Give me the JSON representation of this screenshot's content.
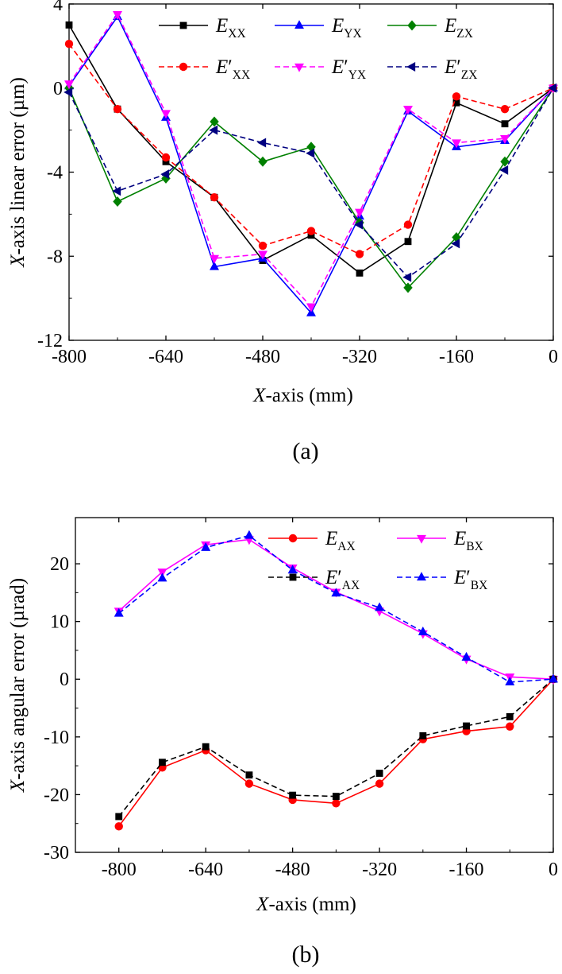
{
  "figure": {
    "panels": [
      {
        "caption": "(a)"
      },
      {
        "caption": "(b)"
      }
    ]
  },
  "chart_data": [
    {
      "type": "line",
      "panel": "(a)",
      "xlabel": {
        "italic": "X",
        "rest": "-axis (mm)"
      },
      "ylabel": {
        "italic": "X",
        "rest": "-axis linear error (µm)"
      },
      "xlim": [
        -800,
        0
      ],
      "ylim": [
        -12,
        4
      ],
      "xticks": [
        -800,
        -640,
        -480,
        -320,
        -160,
        0
      ],
      "yticks": [
        -12,
        -8,
        -4,
        0,
        4
      ],
      "grid": false,
      "legend": "top, 3 columns x 2 rows",
      "x": [
        -800,
        -720,
        -640,
        -560,
        -480,
        -400,
        -320,
        -240,
        -160,
        -80,
        0
      ],
      "series": [
        {
          "name": "E_XX",
          "label_main": "E",
          "label_prime": "",
          "label_sub": "XX",
          "color": "#000000",
          "dash": "solid",
          "marker": "square",
          "values": [
            3.0,
            -1.0,
            -3.5,
            -5.2,
            -8.2,
            -7.0,
            -8.8,
            -7.3,
            -0.7,
            -1.7,
            0
          ]
        },
        {
          "name": "E_YX",
          "label_main": "E",
          "label_prime": "",
          "label_sub": "YX",
          "color": "#0000ff",
          "dash": "solid",
          "marker": "triangle-up",
          "values": [
            0.1,
            3.4,
            -1.4,
            -8.5,
            -8.1,
            -10.7,
            -6.1,
            -1.1,
            -2.8,
            -2.5,
            0
          ]
        },
        {
          "name": "E_ZX",
          "label_main": "E",
          "label_prime": "",
          "label_sub": "ZX",
          "color": "#008000",
          "dash": "solid",
          "marker": "diamond",
          "values": [
            0.0,
            -5.4,
            -4.3,
            -1.6,
            -3.5,
            -2.8,
            -6.4,
            -9.5,
            -7.1,
            -3.5,
            0
          ]
        },
        {
          "name": "E'_XX",
          "label_main": "E",
          "label_prime": "′",
          "label_sub": "XX",
          "color": "#ff0000",
          "dash": "dashed",
          "marker": "circle",
          "values": [
            2.1,
            -1.0,
            -3.3,
            -5.2,
            -7.5,
            -6.8,
            -7.9,
            -6.5,
            -0.4,
            -1.0,
            0
          ]
        },
        {
          "name": "E'_YX",
          "label_main": "E",
          "label_prime": "′",
          "label_sub": "YX",
          "color": "#ff00ff",
          "dash": "dashed",
          "marker": "triangle-down",
          "values": [
            0.2,
            3.5,
            -1.2,
            -8.1,
            -7.9,
            -10.4,
            -5.9,
            -1.0,
            -2.6,
            -2.4,
            0
          ]
        },
        {
          "name": "E'_ZX",
          "label_main": "E",
          "label_prime": "′",
          "label_sub": "ZX",
          "color": "#000080",
          "dash": "dashed",
          "marker": "triangle-left",
          "values": [
            -0.2,
            -4.9,
            -4.1,
            -2.0,
            -2.6,
            -3.1,
            -6.5,
            -9.0,
            -7.4,
            -3.9,
            0
          ]
        }
      ]
    },
    {
      "type": "line",
      "panel": "(b)",
      "xlabel": {
        "italic": "X",
        "rest": "-axis (mm)"
      },
      "ylabel": {
        "italic": "X",
        "rest": "-axis angular error (µrad)"
      },
      "xlim": [
        -880,
        0
      ],
      "ylim": [
        -30,
        28
      ],
      "xticks": [
        -800,
        -640,
        -480,
        -320,
        -160,
        0
      ],
      "yticks": [
        -30,
        -20,
        -10,
        0,
        10,
        20
      ],
      "grid": false,
      "legend": "top-right, 2 columns x 2 rows",
      "x": [
        -800,
        -720,
        -640,
        -560,
        -480,
        -400,
        -320,
        -240,
        -160,
        -80,
        0
      ],
      "series": [
        {
          "name": "E_AX",
          "label_main": "E",
          "label_prime": "",
          "label_sub": "AX",
          "color": "#ff0000",
          "dash": "solid",
          "marker": "circle",
          "values": [
            -25.5,
            -15.3,
            -12.3,
            -18.1,
            -20.9,
            -21.5,
            -18.1,
            -10.4,
            -9.0,
            -8.2,
            0
          ]
        },
        {
          "name": "E_BX",
          "label_main": "E",
          "label_prime": "",
          "label_sub": "BX",
          "color": "#ff00ff",
          "dash": "solid",
          "marker": "triangle-down",
          "values": [
            11.8,
            18.6,
            23.3,
            24.2,
            19.3,
            15.1,
            11.8,
            7.9,
            3.5,
            0.4,
            0
          ]
        },
        {
          "name": "E'_AX",
          "label_main": "E",
          "label_prime": "′",
          "label_sub": "AX",
          "color": "#000000",
          "dash": "dashed",
          "marker": "square",
          "values": [
            -23.8,
            -14.4,
            -11.7,
            -16.6,
            -20.1,
            -20.3,
            -16.3,
            -9.8,
            -8.1,
            -6.5,
            0
          ]
        },
        {
          "name": "E'_BX",
          "label_main": "E",
          "label_prime": "′",
          "label_sub": "BX",
          "color": "#0000ff",
          "dash": "dashed",
          "marker": "triangle-up",
          "values": [
            11.4,
            17.5,
            22.8,
            24.9,
            18.9,
            14.9,
            12.4,
            8.2,
            3.8,
            -0.5,
            0
          ]
        }
      ]
    }
  ]
}
